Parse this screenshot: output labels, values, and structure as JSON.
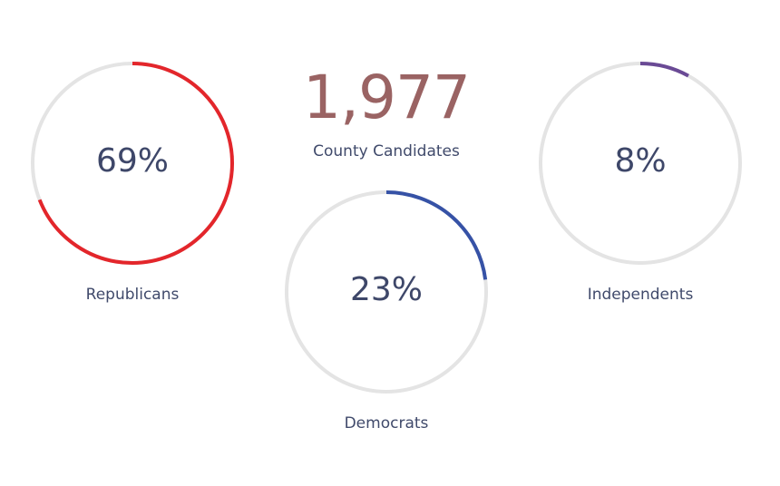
{
  "summary": {
    "value": "1,977",
    "label": "County Candidates",
    "color": "#9a6363"
  },
  "colors": {
    "track": "#e4e4e4",
    "text": "#3e4769"
  },
  "chart_data": {
    "type": "pie",
    "series": [
      {
        "name": "Republicans",
        "value": 69,
        "display": "69%",
        "color": "#e3262b"
      },
      {
        "name": "Democrats",
        "value": 23,
        "display": "23%",
        "color": "#3652a6"
      },
      {
        "name": "Independents",
        "value": 8,
        "display": "8%",
        "color": "#6a4a95"
      }
    ]
  }
}
